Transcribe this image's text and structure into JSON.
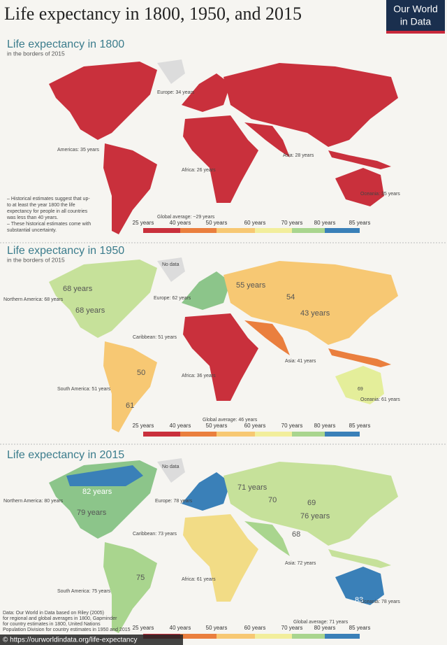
{
  "title": "Life expectancy in 1800, 1950, and 2015",
  "logo": [
    "Our World",
    "in Data"
  ],
  "panels": [
    {
      "title": "Life expectancy in 1800",
      "subtitle": "in the borders of 2015",
      "labels": [
        "Europe: 34 years",
        "Americas: 35 years",
        "Africa: 26 years",
        "Asia: 28 years",
        "Oceania: 35 years"
      ],
      "notes": [
        "– Historical estimates suggest that up-",
        "to at least the year 1800 the life",
        "expectancy for people in all countries",
        "was less than 40 years.",
        "– These historical estimates come with",
        "substantial uncertainty."
      ],
      "global_average": "Global average: ~29 years"
    },
    {
      "title": "Life expectancy in 1950",
      "subtitle": "in the borders of 2015",
      "labels": [
        "No data",
        "Northern America: 68 years",
        "68 years",
        "68 years",
        "Europe: 62 years",
        "55 years",
        "54",
        "43 years",
        "Caribbean: 51 years",
        "Asia: 41 years",
        "Africa: 36 years",
        "South America: 51 years",
        "50",
        "61",
        "Oceania: 61 years",
        "69"
      ],
      "global_average": "Global average: 46 years"
    },
    {
      "title": "Life expectancy in 2015",
      "labels": [
        "No data",
        "82 years",
        "Northern America: 80 years",
        "79 years",
        "Europe: 78 years",
        "71 years",
        "70",
        "69",
        "76 years",
        "Caribbean: 73 years",
        "68",
        "Asia: 72 years",
        "Africa: 61 years",
        "75",
        "South America: 75 years",
        "83",
        "Oceania: 78 years"
      ],
      "global_average": "Global average: 71 years"
    }
  ],
  "legend": {
    "labels": [
      "25 years",
      "40 years",
      "50 years",
      "60 years",
      "70 years",
      "80 years",
      "85 years"
    ],
    "colors": [
      "#c9303c",
      "#ea7f3e",
      "#f7c873",
      "#f2ee9c",
      "#a9d58e",
      "#3a80b8"
    ]
  },
  "source": [
    "Data: Our World in Data based on Riley (2005)",
    "for regional and global averages in 1800, Gapminder",
    "for country estimates in 1800, United Nations",
    "Population Division for country estimates in 1950 and 2015"
  ],
  "url": "© https://ourworldindata.org/life-expectancy"
}
